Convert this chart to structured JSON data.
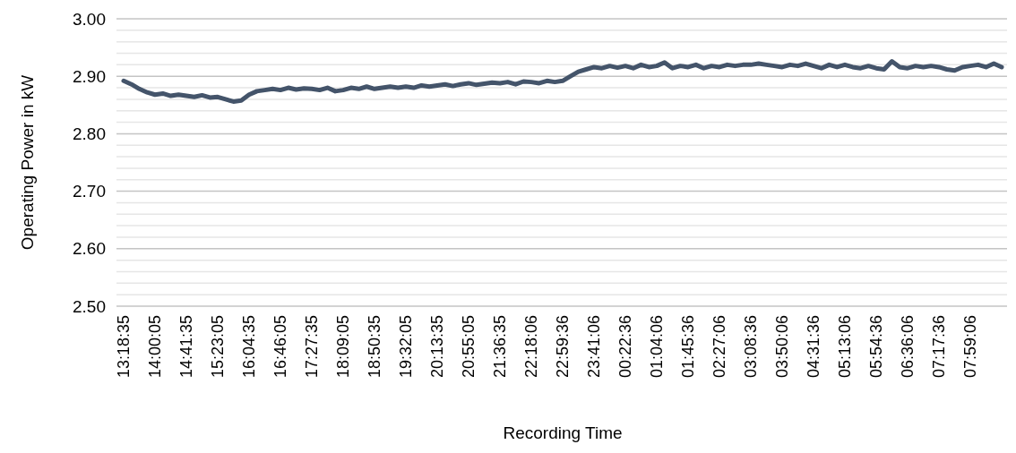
{
  "chart_data": {
    "type": "line",
    "xlabel": "Recording Time",
    "ylabel": "Operating Power in kW",
    "categories": [
      "13:18:35",
      null,
      null,
      null,
      "14:00:05",
      null,
      null,
      null,
      "14:41:35",
      null,
      null,
      null,
      "15:23:05",
      null,
      null,
      null,
      "16:04:35",
      null,
      null,
      null,
      "16:46:05",
      null,
      null,
      null,
      "17:27:35",
      null,
      null,
      null,
      "18:09:05",
      null,
      null,
      null,
      "18:50:35",
      null,
      null,
      null,
      "19:32:05",
      null,
      null,
      null,
      "20:13:35",
      null,
      null,
      null,
      "20:55:05",
      null,
      null,
      null,
      "21:36:35",
      null,
      null,
      null,
      "22:18:06",
      null,
      null,
      null,
      "22:59:36",
      null,
      null,
      null,
      "23:41:06",
      null,
      null,
      null,
      "00:22:36",
      null,
      null,
      null,
      "01:04:06",
      null,
      null,
      null,
      "01:45:36",
      null,
      null,
      null,
      "02:27:06",
      null,
      null,
      null,
      "03:08:36",
      null,
      null,
      null,
      "03:50:06",
      null,
      null,
      null,
      "04:31:36",
      null,
      null,
      null,
      "05:13:06",
      null,
      null,
      null,
      "05:54:36",
      null,
      null,
      null,
      "06:36:06",
      null,
      null,
      null,
      "07:17:36",
      null,
      null,
      null,
      "07:59:06",
      null,
      null,
      null,
      null
    ],
    "series": [
      {
        "color": "#44546a",
        "values": [
          2.892,
          2.886,
          2.878,
          2.872,
          2.868,
          2.87,
          2.866,
          2.868,
          2.866,
          2.864,
          2.867,
          2.863,
          2.864,
          2.86,
          2.856,
          2.858,
          2.868,
          2.874,
          2.876,
          2.878,
          2.876,
          2.88,
          2.877,
          2.879,
          2.878,
          2.876,
          2.88,
          2.874,
          2.876,
          2.88,
          2.878,
          2.882,
          2.878,
          2.88,
          2.882,
          2.88,
          2.882,
          2.88,
          2.884,
          2.882,
          2.884,
          2.886,
          2.883,
          2.886,
          2.888,
          2.885,
          2.887,
          2.889,
          2.888,
          2.89,
          2.886,
          2.891,
          2.89,
          2.888,
          2.892,
          2.89,
          2.892,
          2.9,
          2.908,
          2.912,
          2.916,
          2.914,
          2.918,
          2.915,
          2.918,
          2.914,
          2.92,
          2.916,
          2.918,
          2.924,
          2.914,
          2.918,
          2.916,
          2.92,
          2.914,
          2.918,
          2.916,
          2.92,
          2.918,
          2.92,
          2.92,
          2.922,
          2.92,
          2.918,
          2.916,
          2.92,
          2.918,
          2.922,
          2.918,
          2.914,
          2.92,
          2.916,
          2.92,
          2.916,
          2.914,
          2.918,
          2.914,
          2.912,
          2.926,
          2.916,
          2.914,
          2.918,
          2.916,
          2.918,
          2.916,
          2.912,
          2.91,
          2.916,
          2.918,
          2.92,
          2.916,
          2.922,
          2.916
        ]
      }
    ],
    "ylim": [
      2.5,
      3.0
    ],
    "yticks": [
      {
        "value": 2.5,
        "label": "2.50"
      },
      {
        "value": 2.52,
        "label": null
      },
      {
        "value": 2.54,
        "label": null
      },
      {
        "value": 2.56,
        "label": null
      },
      {
        "value": 2.58,
        "label": null
      },
      {
        "value": 2.6,
        "label": "2.60"
      },
      {
        "value": 2.62,
        "label": null
      },
      {
        "value": 2.64,
        "label": null
      },
      {
        "value": 2.66,
        "label": null
      },
      {
        "value": 2.68,
        "label": null
      },
      {
        "value": 2.7,
        "label": "2.70"
      },
      {
        "value": 2.72,
        "label": null
      },
      {
        "value": 2.74,
        "label": null
      },
      {
        "value": 2.76,
        "label": null
      },
      {
        "value": 2.78,
        "label": null
      },
      {
        "value": 2.8,
        "label": "2.80"
      },
      {
        "value": 2.82,
        "label": null
      },
      {
        "value": 2.84,
        "label": null
      },
      {
        "value": 2.86,
        "label": null
      },
      {
        "value": 2.88,
        "label": null
      },
      {
        "value": 2.9,
        "label": "2.90"
      },
      {
        "value": 2.92,
        "label": null
      },
      {
        "value": 2.94,
        "label": null
      },
      {
        "value": 2.96,
        "label": null
      },
      {
        "value": 2.98,
        "label": null
      },
      {
        "value": 3.0,
        "label": "3.00"
      }
    ],
    "grid": "y",
    "marker": "none",
    "line_style": "solid"
  }
}
